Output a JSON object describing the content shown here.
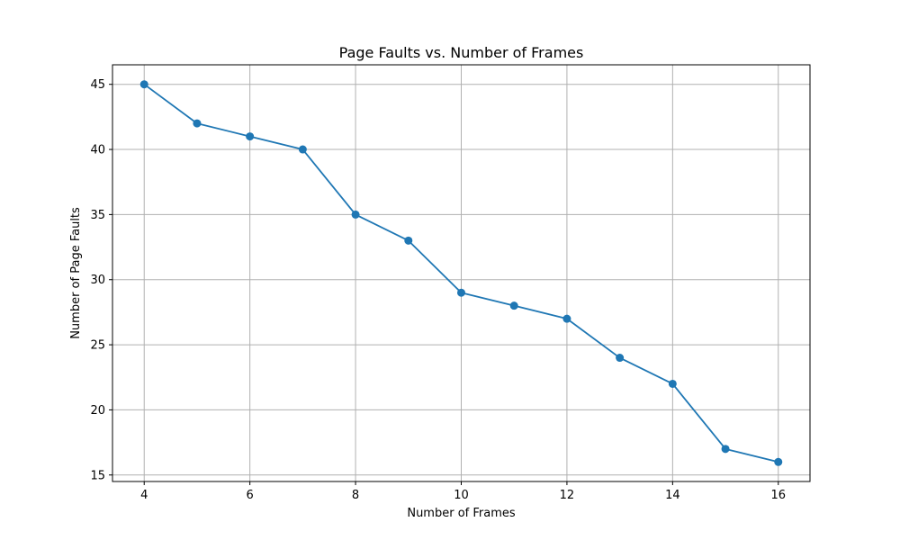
{
  "chart_data": {
    "type": "line",
    "title": "Page Faults vs. Number of Frames",
    "xlabel": "Number of Frames",
    "ylabel": "Number of Page Faults",
    "xlim": [
      3.4,
      16.6
    ],
    "ylim": [
      14.5,
      46.5
    ],
    "xticks": [
      4,
      6,
      8,
      10,
      12,
      14,
      16
    ],
    "yticks": [
      15,
      20,
      25,
      30,
      35,
      40,
      45
    ],
    "grid": true,
    "series": [
      {
        "color": "#1f77b4",
        "marker": "circle",
        "x": [
          4,
          5,
          6,
          7,
          8,
          9,
          10,
          11,
          12,
          13,
          14,
          15,
          16
        ],
        "y": [
          45,
          42,
          41,
          40,
          35,
          33,
          29,
          28,
          27,
          24,
          22,
          17,
          16
        ]
      }
    ]
  }
}
